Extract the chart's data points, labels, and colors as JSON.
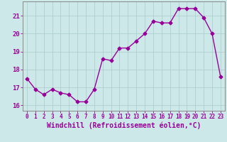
{
  "x": [
    0,
    1,
    2,
    3,
    4,
    5,
    6,
    7,
    8,
    9,
    10,
    11,
    12,
    13,
    14,
    15,
    16,
    17,
    18,
    19,
    20,
    21,
    22,
    23
  ],
  "y": [
    17.5,
    16.9,
    16.6,
    16.9,
    16.7,
    16.6,
    16.2,
    16.2,
    16.9,
    18.6,
    18.5,
    19.2,
    19.2,
    19.6,
    20.0,
    20.7,
    20.6,
    20.6,
    21.4,
    21.4,
    21.4,
    20.9,
    20.0,
    17.6
  ],
  "line_color": "#990099",
  "marker": "D",
  "markersize": 2.5,
  "linewidth": 1.0,
  "xlabel": "Windchill (Refroidissement éolien,°C)",
  "xlim": [
    -0.5,
    23.5
  ],
  "ylim": [
    15.7,
    21.8
  ],
  "yticks": [
    16,
    17,
    18,
    19,
    20,
    21
  ],
  "xticks": [
    0,
    1,
    2,
    3,
    4,
    5,
    6,
    7,
    8,
    9,
    10,
    11,
    12,
    13,
    14,
    15,
    16,
    17,
    18,
    19,
    20,
    21,
    22,
    23
  ],
  "xtick_fontsize": 5.5,
  "ytick_fontsize": 6.5,
  "xlabel_fontsize": 7.0,
  "bg_color": "#cce8e8",
  "grid_color": "#aacccc",
  "grid_linewidth": 0.5,
  "spine_color": "#888888",
  "spine_linewidth": 0.7
}
